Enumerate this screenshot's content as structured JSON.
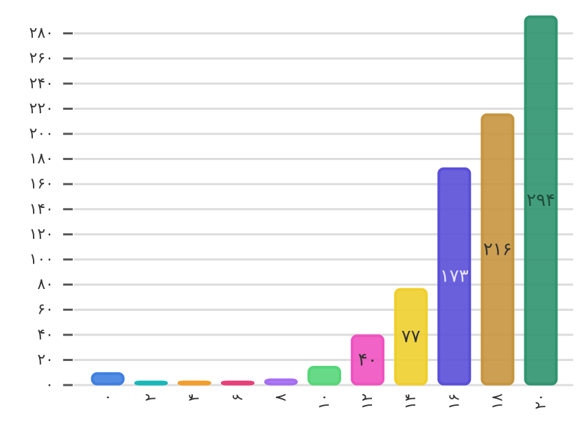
{
  "chart_data": {
    "type": "bar",
    "categories": [
      "۰",
      "۲",
      "۴",
      "۶",
      "۸",
      "۱۰",
      "۱۲",
      "۱۴",
      "۱۶",
      "۱۸",
      "۲۰"
    ],
    "values": [
      10,
      3,
      3,
      3,
      5,
      15,
      40,
      77,
      173,
      216,
      294
    ],
    "data_labels": [
      "",
      "",
      "",
      "",
      "",
      "",
      "۴۰",
      "۷۷",
      "۱۷۳",
      "۲۱۶",
      "۲۹۴"
    ],
    "colors": [
      "#3f7fe0",
      "#17b8b8",
      "#f39d2a",
      "#e83f78",
      "#a56ef2",
      "#57d67a",
      "#f052c0",
      "#efcf2d",
      "#5a4fd8",
      "#c6953f",
      "#2f9470"
    ],
    "label_colors": [
      "#333333",
      "#333333",
      "#333333",
      "#333333",
      "#333333",
      "#333333",
      "#333333",
      "#333333",
      "#e8e4ff",
      "#333333",
      "#1d4d3a"
    ],
    "yticks": [
      0,
      20,
      40,
      60,
      80,
      100,
      120,
      140,
      160,
      180,
      200,
      220,
      240,
      260,
      280
    ],
    "ytick_labels": [
      "۰",
      "۲۰",
      "۴۰",
      "۶۰",
      "۸۰",
      "۱۰۰",
      "۱۲۰",
      "۱۴۰",
      "۱۶۰",
      "۱۸۰",
      "۲۰۰",
      "۲۲۰",
      "۲۴۰",
      "۲۶۰",
      "۲۸۰"
    ],
    "ylim": [
      0,
      300
    ],
    "xlabel_rotation": 90,
    "grid": true,
    "legend": "none"
  }
}
